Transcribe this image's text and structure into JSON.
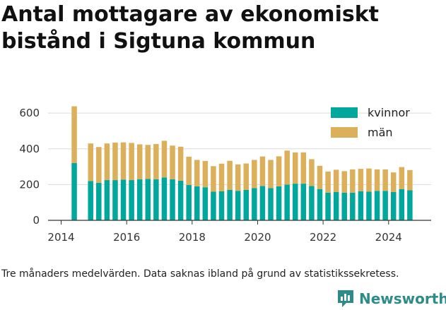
{
  "title": "Antal mottagare av ekonomiskt bistånd i Sigtuna kommun",
  "caption": "Tre månaders medelvärden. Data saknas ibland på grund av statistikssekretess.",
  "brand": {
    "name": "Newsworthy",
    "logo_icon": "newsworthy-chart-logo-icon",
    "color": "#2d8c8a"
  },
  "chart_data": {
    "type": "bar",
    "stacked": true,
    "x": [
      2014.4,
      2014.9,
      2015.15,
      2015.4,
      2015.65,
      2015.9,
      2016.15,
      2016.4,
      2016.65,
      2016.9,
      2017.15,
      2017.4,
      2017.65,
      2017.9,
      2018.15,
      2018.4,
      2018.65,
      2018.9,
      2019.15,
      2019.4,
      2019.65,
      2019.9,
      2020.15,
      2020.4,
      2020.65,
      2020.9,
      2021.15,
      2021.4,
      2021.65,
      2021.9,
      2022.15,
      2022.4,
      2022.65,
      2022.9,
      2023.15,
      2023.4,
      2023.65,
      2023.9,
      2024.15,
      2024.4,
      2024.65
    ],
    "series": [
      {
        "name": "kvinnor",
        "color": "#00a79d",
        "values": [
          320,
          220,
          210,
          225,
          225,
          228,
          225,
          230,
          232,
          230,
          240,
          230,
          222,
          198,
          190,
          185,
          160,
          162,
          170,
          165,
          170,
          180,
          192,
          180,
          190,
          200,
          205,
          205,
          192,
          175,
          155,
          158,
          155,
          155,
          163,
          160,
          165,
          165,
          158,
          175,
          168
        ]
      },
      {
        "name": "män",
        "color": "#dcaf5a",
        "values": [
          318,
          210,
          200,
          205,
          210,
          208,
          208,
          195,
          190,
          197,
          205,
          188,
          190,
          158,
          148,
          147,
          143,
          155,
          163,
          148,
          148,
          158,
          165,
          158,
          168,
          190,
          175,
          175,
          150,
          130,
          118,
          125,
          120,
          130,
          125,
          130,
          120,
          120,
          110,
          123,
          113
        ]
      }
    ],
    "xlim": [
      2013.6,
      2025.3
    ],
    "ylim": [
      0,
      640
    ],
    "xticks": [
      2014,
      2016,
      2018,
      2020,
      2022,
      2024
    ],
    "yticks": [
      0,
      200,
      400,
      600
    ],
    "xlabel": "",
    "ylabel": "",
    "grid": "horizontal",
    "legend_position": "top-right"
  }
}
